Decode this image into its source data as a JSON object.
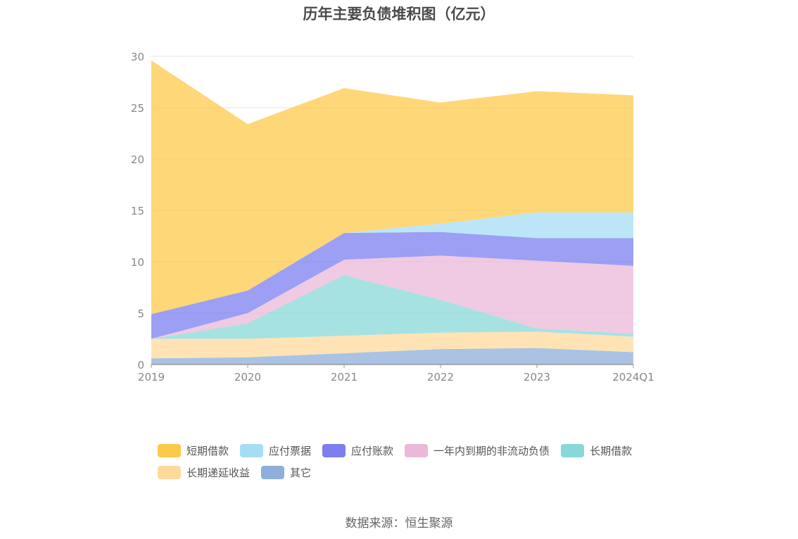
{
  "chart_data": {
    "type": "area",
    "title": "历年主要负债堆积图（亿元）",
    "categories": [
      "2019",
      "2020",
      "2021",
      "2022",
      "2023",
      "2024Q1"
    ],
    "ylim": [
      0,
      30
    ],
    "yticks": [
      0,
      5,
      10,
      15,
      20,
      25,
      30
    ],
    "stacked": true,
    "grid": true,
    "legend_position": "bottom",
    "series": [
      {
        "name": "其它",
        "color": "#8eaedb",
        "values": [
          0.6,
          0.7,
          1.1,
          1.5,
          1.6,
          1.2
        ]
      },
      {
        "name": "长期递延收益",
        "color": "#ffd99c",
        "values": [
          1.9,
          1.8,
          1.7,
          1.6,
          1.6,
          1.5
        ]
      },
      {
        "name": "长期借款",
        "color": "#88d8d8",
        "values": [
          0.0,
          1.5,
          5.9,
          3.2,
          0.3,
          0.3
        ]
      },
      {
        "name": "一年内到期的非流动负债",
        "color": "#eab8d8",
        "values": [
          0.0,
          1.0,
          1.5,
          4.3,
          6.6,
          6.6
        ]
      },
      {
        "name": "应付账款",
        "color": "#7b7ff0",
        "values": [
          2.4,
          2.2,
          2.6,
          2.3,
          2.2,
          2.7
        ]
      },
      {
        "name": "应付票据",
        "color": "#a5ddf6",
        "values": [
          0.0,
          0.0,
          0.0,
          0.8,
          2.5,
          2.5
        ]
      },
      {
        "name": "短期借款",
        "color": "#fdc94b",
        "values": [
          24.7,
          16.2,
          14.1,
          11.8,
          11.8,
          11.4
        ]
      }
    ]
  },
  "legend": {
    "row1": [
      {
        "label": "短期借款",
        "color": "#fdc94b"
      },
      {
        "label": "应付票据",
        "color": "#a5ddf6"
      },
      {
        "label": "应付账款",
        "color": "#7b7ff0"
      },
      {
        "label": "一年内到期的非流动负债",
        "color": "#eab8d8"
      },
      {
        "label": "长期借款",
        "color": "#88d8d8"
      }
    ],
    "row2": [
      {
        "label": "长期递延收益",
        "color": "#ffd99c"
      },
      {
        "label": "其它",
        "color": "#8eaedb"
      }
    ]
  },
  "source": "数据来源：恒生聚源"
}
